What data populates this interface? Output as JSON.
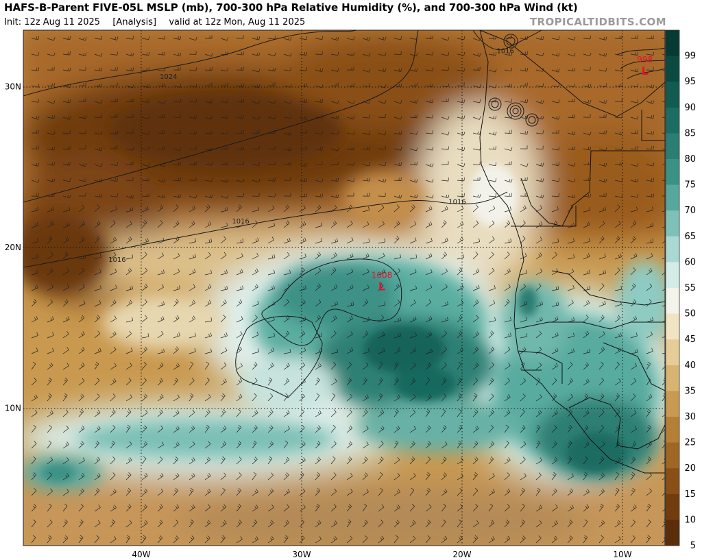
{
  "header": {
    "title": "HAFS-B-Parent FIVE-05L MSLP (mb), 700-300 hPa Relative Humidity (%), and 700-300 hPa Wind (kt)",
    "init_label": "Init: 12z Aug 11 2025",
    "analysis_label": "[Analysis]",
    "valid_label": "valid at 12z Mon, Aug 11 2025",
    "brand": "TROPICALTIDBITS.COM"
  },
  "map": {
    "lat_labels": [
      {
        "text": "30N",
        "lat": 30
      },
      {
        "text": "20N",
        "lat": 20
      },
      {
        "text": "10N",
        "lat": 10
      }
    ],
    "lon_labels": [
      {
        "text": "40W",
        "lon": -40
      },
      {
        "text": "30W",
        "lon": -30
      },
      {
        "text": "20W",
        "lon": -20
      },
      {
        "text": "10W",
        "lon": -10
      }
    ],
    "isobar_labels": [
      {
        "text": "1024",
        "lon": -38.3,
        "lat": 30.5
      },
      {
        "text": "1016",
        "lon": -41.5,
        "lat": 19.1
      },
      {
        "text": "1016",
        "lon": -33.8,
        "lat": 21.5
      },
      {
        "text": "1016",
        "lon": -20.3,
        "lat": 22.7
      },
      {
        "text": "1016",
        "lon": -17.3,
        "lat": 32.1
      }
    ],
    "lows": [
      {
        "pressure": "1008",
        "letter": "L",
        "lon": -25.0,
        "lat": 17.6
      },
      {
        "pressure": "998",
        "letter": "L",
        "lon": -8.6,
        "lat": 31.0
      }
    ]
  },
  "colorbar": {
    "labels": [
      "99",
      "95",
      "90",
      "85",
      "80",
      "75",
      "70",
      "65",
      "60",
      "55",
      "50",
      "45",
      "40",
      "35",
      "30",
      "25",
      "20",
      "15",
      "10",
      "5"
    ],
    "colors": [
      "#063a33",
      "#0a4a41",
      "#125b50",
      "#1c6c61",
      "#2a7e73",
      "#3b9186",
      "#57a79d",
      "#7fc1b8",
      "#a9d9d2",
      "#d4ece8",
      "#f3f3ea",
      "#f1e4c2",
      "#e6cd98",
      "#d8b472",
      "#c99a51",
      "#b57f36",
      "#a06624",
      "#8a4f17",
      "#733c0f",
      "#5b2d0a"
    ]
  },
  "colors": {
    "dry_dark": "#6b390f",
    "dry": "#a86a28",
    "neutral": "#efe6cf",
    "moist": "#5fb0a3",
    "moist_dark": "#17695d",
    "low_marker": "#e0142a"
  }
}
